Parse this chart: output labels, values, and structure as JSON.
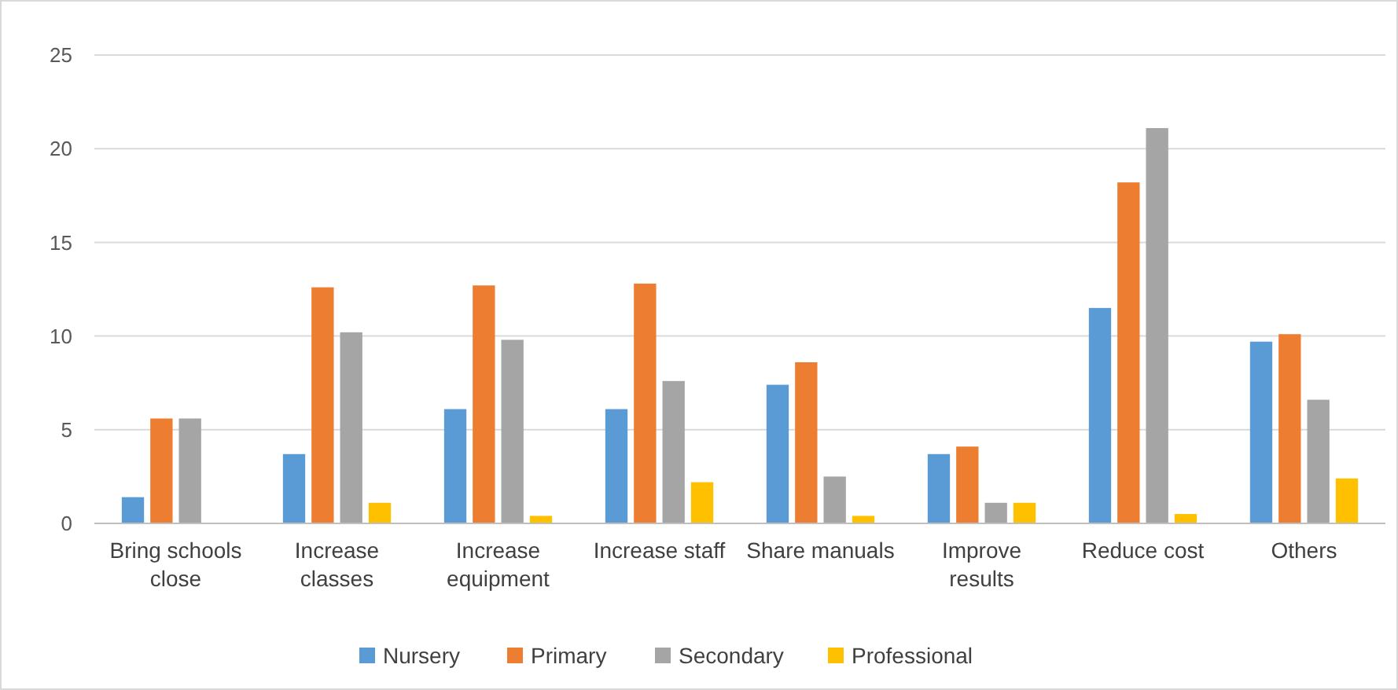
{
  "chart_data": {
    "type": "bar",
    "categories": [
      "Bring schools close",
      "Increase classes",
      "Increase equipment",
      "Increase staff",
      "Share manuals",
      "Improve results",
      "Reduce cost",
      "Others"
    ],
    "series": [
      {
        "name": "Nursery",
        "color": "#5b9bd5",
        "values": [
          1.4,
          3.7,
          6.1,
          6.1,
          7.4,
          3.7,
          11.5,
          9.7
        ]
      },
      {
        "name": "Primary",
        "color": "#ed7d31",
        "values": [
          5.6,
          12.6,
          12.7,
          12.8,
          8.6,
          4.1,
          18.2,
          10.1
        ]
      },
      {
        "name": "Secondary",
        "color": "#a5a5a5",
        "values": [
          5.6,
          10.2,
          9.8,
          7.6,
          2.5,
          1.1,
          21.1,
          6.6
        ]
      },
      {
        "name": "Professional",
        "color": "#ffc000",
        "values": [
          0,
          1.1,
          0.4,
          2.2,
          0.4,
          1.1,
          0.5,
          2.4
        ]
      }
    ],
    "ylim": [
      0,
      25
    ],
    "yticks": [
      0,
      5,
      10,
      15,
      20,
      25
    ],
    "grid": "y",
    "legend": "bottom"
  }
}
